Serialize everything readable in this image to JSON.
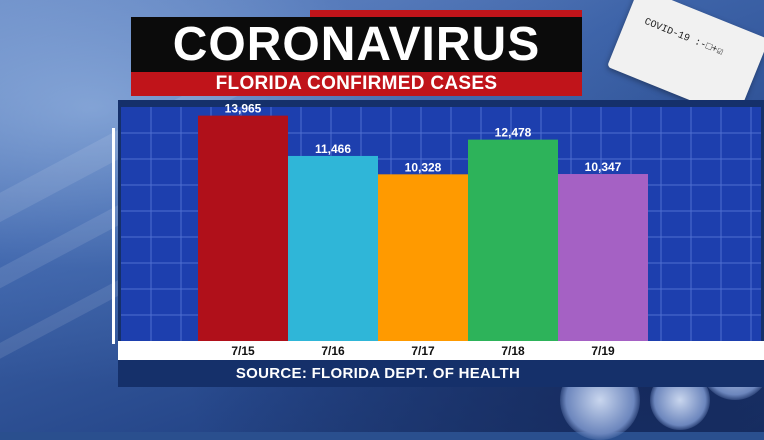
{
  "header": {
    "title": "CORONAVIRUS",
    "subtitle": "FLORIDA CONFIRMED CASES"
  },
  "decor": {
    "test_card_text": "COVID-19 :-□+☑"
  },
  "footer": {
    "source": "SOURCE: FLORIDA DEPT. OF HEALTH"
  },
  "colors": {
    "title_bg": "#0b0b0b",
    "subtitle_bg": "#c0141a",
    "panel_bg": "#15306a",
    "plot_bg": "#1d3fae",
    "grid": "#4f6fd0"
  },
  "chart_data": {
    "type": "bar",
    "title": "FLORIDA CONFIRMED CASES",
    "categories": [
      "7/15",
      "7/16",
      "7/17",
      "7/18",
      "7/19"
    ],
    "values": [
      13965,
      11466,
      10328,
      12478,
      10347
    ],
    "value_labels": [
      "13,965",
      "11,466",
      "10,328",
      "12,478",
      "10,347"
    ],
    "bar_colors": [
      "#b0101a",
      "#2fb6d8",
      "#ff9a00",
      "#2db35a",
      "#a561c4"
    ],
    "ylim": [
      0,
      14500
    ],
    "grid": true,
    "legend": "none"
  }
}
